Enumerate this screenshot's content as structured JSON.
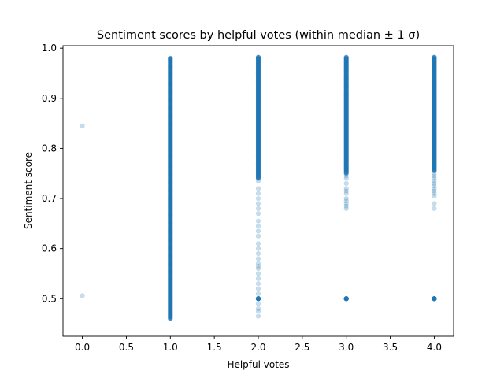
{
  "chart_data": {
    "type": "scatter",
    "title": "Sentiment scores by helpful votes (within median ± 1 σ)",
    "xlabel": "Helpful votes",
    "ylabel": "Sentiment score",
    "xlim": [
      -0.22,
      4.22
    ],
    "ylim": [
      0.425,
      1.005
    ],
    "xticks": [
      "0.0",
      "0.5",
      "1.0",
      "1.5",
      "2.0",
      "2.5",
      "3.0",
      "3.5",
      "4.0"
    ],
    "yticks": [
      "0.5",
      "0.6",
      "0.7",
      "0.8",
      "0.9",
      "1.0"
    ],
    "grid": false,
    "point_color": "#1f77b4",
    "point_alpha": 0.15,
    "series": [
      {
        "x": 0,
        "dense_range": null,
        "sparse": [
          0.845,
          0.506
        ],
        "cluster": null
      },
      {
        "x": 1,
        "dense_range": [
          0.46,
          0.98
        ],
        "sparse": [],
        "cluster": null
      },
      {
        "x": 2,
        "dense_range": [
          0.74,
          0.982
        ],
        "sparse": [
          0.735,
          0.72,
          0.71,
          0.7,
          0.69,
          0.68,
          0.67,
          0.655,
          0.645,
          0.635,
          0.625,
          0.61,
          0.6,
          0.59,
          0.58,
          0.57,
          0.565,
          0.56,
          0.55,
          0.54,
          0.53,
          0.52,
          0.51,
          0.49,
          0.48,
          0.475,
          0.465
        ],
        "cluster": 0.5
      },
      {
        "x": 3,
        "dense_range": [
          0.75,
          0.982
        ],
        "sparse": [
          0.745,
          0.74,
          0.73,
          0.72,
          0.715,
          0.71,
          0.7,
          0.695,
          0.69,
          0.685,
          0.68
        ],
        "cluster": 0.5
      },
      {
        "x": 4,
        "dense_range": [
          0.755,
          0.982
        ],
        "sparse": [
          0.75,
          0.745,
          0.74,
          0.735,
          0.73,
          0.725,
          0.72,
          0.715,
          0.71,
          0.705,
          0.69,
          0.68
        ],
        "cluster": 0.5
      }
    ]
  }
}
